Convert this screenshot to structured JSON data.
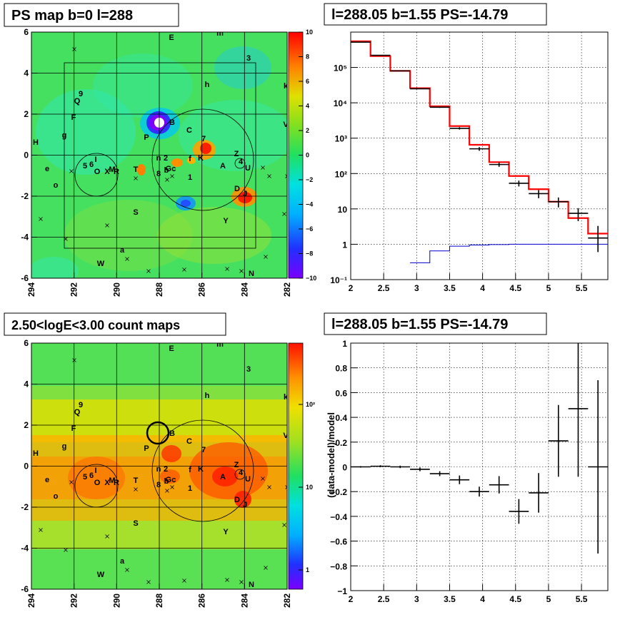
{
  "panels": {
    "ps_map": {
      "title": "PS map b=0 l=288",
      "x_ticks": [
        "294",
        "292",
        "290",
        "288",
        "286",
        "284",
        "282"
      ],
      "y_ticks": [
        "6",
        "4",
        "2",
        "0",
        "-2",
        "-4",
        "-6"
      ],
      "colorbar_ticks": [
        "10",
        "8",
        "6",
        "4",
        "2",
        "0",
        "−2",
        "−4",
        "−6",
        "−8",
        "−10"
      ],
      "labels": [
        "E",
        "m",
        "3",
        "h",
        "k",
        "9",
        "Q",
        "F",
        "V",
        "g",
        "H",
        "B",
        "C",
        "P",
        "7",
        "Z",
        "n",
        "2",
        "K",
        "f",
        "4",
        "e",
        "5",
        "6",
        "I",
        "A",
        "U",
        "M",
        "X",
        "O",
        "R",
        "T",
        "8",
        "b",
        "Gc",
        "1",
        "o",
        "D",
        "J",
        "S",
        "Y",
        "a",
        "W",
        "N"
      ]
    },
    "spectrum": {
      "title": "l=288.05 b=1.55 PS=-14.79",
      "x_ticks": [
        "2",
        "2.5",
        "3",
        "3.5",
        "4",
        "4.5",
        "5",
        "5.5"
      ],
      "y_ticks": [
        "10⁻¹",
        "1",
        "10",
        "10²",
        "10³",
        "10⁴",
        "10⁵"
      ]
    },
    "count_map": {
      "title": "2.50<logE<3.00 count maps",
      "x_ticks": [
        "294",
        "292",
        "290",
        "288",
        "286",
        "284",
        "282"
      ],
      "y_ticks": [
        "6",
        "4",
        "2",
        "0",
        "-2",
        "-4",
        "-6"
      ],
      "colorbar_ticks": [
        "10²",
        "10",
        "1"
      ]
    },
    "residual": {
      "title": "l=288.05 b=1.55 PS=-14.79",
      "y_axis_title": "(data-model)/model",
      "x_ticks": [
        "2",
        "2.5",
        "3",
        "3.5",
        "4",
        "4.5",
        "5",
        "5.5"
      ],
      "y_ticks": [
        "1",
        "0.8",
        "0.6",
        "0.4",
        "0.2",
        "0",
        "−0.2",
        "−0.4",
        "−0.6",
        "−0.8",
        "−1"
      ]
    }
  },
  "chart_data": [
    {
      "type": "heatmap",
      "title": "PS map b=0 l=288",
      "xlim": [
        294,
        282
      ],
      "ylim": [
        -6,
        6
      ],
      "zlim": [
        -10,
        10
      ],
      "colorbar": "rainbow",
      "features": [
        {
          "l": 288.0,
          "b": 1.6,
          "value": -10
        },
        {
          "l": 285.9,
          "b": 0.4,
          "value": 8
        },
        {
          "l": 284.1,
          "b": -2.0,
          "value": 8
        },
        {
          "l": 288.8,
          "b": -0.8,
          "value": 6
        },
        {
          "l": 287.1,
          "b": -0.4,
          "value": 5
        },
        {
          "l": 286.8,
          "b": -2.4,
          "value": -4
        },
        {
          "l": 289.2,
          "b": 3.4,
          "value": -2
        }
      ],
      "circles": [
        {
          "l": 291.0,
          "b": -1.0,
          "radius": 1.0
        },
        {
          "l": 286.0,
          "b": -0.2,
          "radius": 2.4
        },
        {
          "l": 284.2,
          "b": -0.4,
          "radius": 0.35
        }
      ],
      "box": {
        "l": [
          292.5,
          283.5
        ],
        "b": [
          -4.4,
          4.5
        ]
      }
    },
    {
      "type": "line",
      "title": "l=288.05 b=1.55 PS=-14.79",
      "x_scale": "linear",
      "y_scale": "log",
      "xlim": [
        2,
        5.9
      ],
      "ylim": [
        0.1,
        1000000
      ],
      "series": [
        {
          "style": "step",
          "color": "#ff0000",
          "edges": [
            2.0,
            2.3,
            2.6,
            2.9,
            3.2,
            3.5,
            3.8,
            4.1,
            4.4,
            4.7,
            5.0,
            5.3,
            5.6,
            5.9
          ],
          "values": [
            550000,
            210000,
            80000,
            26000,
            8000,
            2200,
            650,
            210,
            85,
            36,
            16,
            5.5,
            2.0
          ]
        },
        {
          "style": "step",
          "color": "#0000cc",
          "edges": [
            2.9,
            3.2,
            3.5,
            3.8,
            4.1,
            4.4,
            4.7,
            5.0,
            5.3,
            5.6,
            5.9
          ],
          "values": [
            0.3,
            0.65,
            0.88,
            0.95,
            0.98,
            1,
            1,
            1,
            1,
            1
          ]
        },
        {
          "style": "errorbar",
          "color": "#000000",
          "x": [
            2.15,
            2.45,
            2.75,
            3.05,
            3.35,
            3.65,
            3.95,
            4.25,
            4.55,
            4.85,
            5.15,
            5.45,
            5.75
          ],
          "y": [
            520000,
            220000,
            80000,
            25000,
            7500,
            1900,
            500,
            180,
            53,
            27,
            16,
            7.5,
            1.5
          ],
          "yerr_low": [
            3000,
            2000,
            1000,
            500,
            300,
            150,
            60,
            25,
            10,
            7,
            5,
            3,
            0.9
          ],
          "yerr_high": [
            3000,
            2000,
            1000,
            500,
            300,
            150,
            60,
            25,
            10,
            7,
            5,
            3,
            1.8
          ]
        }
      ]
    },
    {
      "type": "heatmap",
      "title": "2.50<logE<3.00 count maps",
      "xlim": [
        294,
        282
      ],
      "ylim": [
        -6,
        6
      ],
      "zscale": "log",
      "zlim": [
        0.5,
        300
      ],
      "colorbar": "rainbow",
      "features": [
        {
          "l": 285.0,
          "b": -0.5,
          "value": 200
        },
        {
          "l": 284.2,
          "b": -1.5,
          "value": 200
        },
        {
          "l": 287.4,
          "b": 0.7,
          "value": 150
        },
        {
          "l": 290.5,
          "b": -0.4,
          "value": 60
        }
      ],
      "circles": [
        {
          "l": 291.0,
          "b": -1.0,
          "radius": 1.0
        },
        {
          "l": 286.0,
          "b": -0.2,
          "radius": 2.4
        },
        {
          "l": 284.2,
          "b": -0.4,
          "radius": 0.35
        },
        {
          "l": 288.05,
          "b": 1.55,
          "radius": 0.55
        }
      ]
    },
    {
      "type": "scatter",
      "title": "l=288.05 b=1.55 PS=-14.79",
      "ylabel": "(data-model)/model",
      "xlim": [
        2,
        5.9
      ],
      "ylim": [
        -1,
        1
      ],
      "x": [
        2.15,
        2.45,
        2.75,
        3.05,
        3.35,
        3.65,
        3.95,
        4.25,
        4.55,
        4.85,
        5.15,
        5.45,
        5.75
      ],
      "y": [
        0.0,
        0.005,
        0.0,
        -0.02,
        -0.055,
        -0.105,
        -0.2,
        -0.145,
        -0.36,
        -0.21,
        0.21,
        0.47,
        0.0
      ],
      "xerr": 0.15,
      "yerr": [
        0.006,
        0.008,
        0.01,
        0.015,
        0.02,
        0.035,
        0.04,
        0.07,
        0.1,
        0.16,
        0.29,
        0.55,
        0.7
      ]
    }
  ]
}
